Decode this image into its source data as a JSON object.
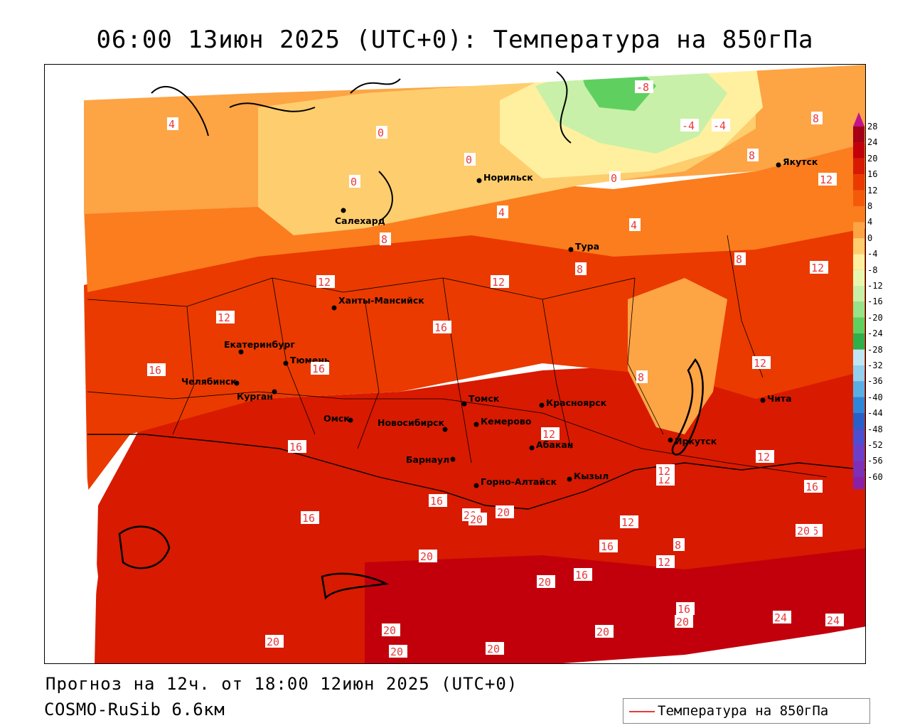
{
  "title": "06:00 13июн 2025 (UTC+0): Температура на 850гПа",
  "forecast_line": "Прогноз на 12ч. от 18:00 12июн 2025 (UTC+0)",
  "model_line": "COSMO-RuSib 6.6км",
  "legend": {
    "label": "Температура на 850гПа",
    "line_color": "#e8393a"
  },
  "color_scale": {
    "ticks": [
      "28",
      "24",
      "20",
      "16",
      "12",
      "8",
      "4",
      "0",
      "-4",
      "-8",
      "-12",
      "-16",
      "-20",
      "-24",
      "-28",
      "-32",
      "-36",
      "-40",
      "-44",
      "-48",
      "-52",
      "-56",
      "-60"
    ],
    "colors": [
      "#a50015",
      "#c2000c",
      "#d81a00",
      "#ea3a00",
      "#f55a0a",
      "#fb7d1e",
      "#fda445",
      "#fecd6e",
      "#fff0a0",
      "#e8f7b0",
      "#c8f0a8",
      "#96e38a",
      "#5fd060",
      "#2fb04a",
      "#bfe6f2",
      "#94cfee",
      "#5aaee6",
      "#2f86d8",
      "#2a5fc8",
      "#4d4ed0",
      "#6d3fc8",
      "#7d2fb8",
      "#8a1fa8"
    ]
  },
  "cities": [
    {
      "name": "Норильск"
    },
    {
      "name": "Якутск"
    },
    {
      "name": "Салехард"
    },
    {
      "name": "Тура"
    },
    {
      "name": "Ханты-Мансийск"
    },
    {
      "name": "Екатеринбург"
    },
    {
      "name": "Тюмень"
    },
    {
      "name": "Челябинск"
    },
    {
      "name": "Курган"
    },
    {
      "name": "Омск"
    },
    {
      "name": "Новосибирск"
    },
    {
      "name": "Томск"
    },
    {
      "name": "Красноярск"
    },
    {
      "name": "Кемерово"
    },
    {
      "name": "Барнаул"
    },
    {
      "name": "Абакан"
    },
    {
      "name": "Горно-Алтайск"
    },
    {
      "name": "Кызыл"
    },
    {
      "name": "Иркутск"
    },
    {
      "name": "Чита"
    }
  ],
  "isotherm_labels": [
    "4",
    "0",
    "0",
    "0",
    "-8",
    "-4",
    "-4",
    "8",
    "0",
    "4",
    "12",
    "4",
    "8",
    "8",
    "8",
    "12",
    "12",
    "12",
    "16",
    "8",
    "16",
    "12",
    "8",
    "12",
    "16",
    "16",
    "12",
    "12",
    "16",
    "12",
    "16",
    "16",
    "20",
    "20",
    "20",
    "16",
    "12",
    "12",
    "16",
    "20",
    "8",
    "12",
    "20",
    "16",
    "20",
    "20",
    "20",
    "16",
    "20",
    "24",
    "24",
    "20",
    "20",
    "20"
  ]
}
